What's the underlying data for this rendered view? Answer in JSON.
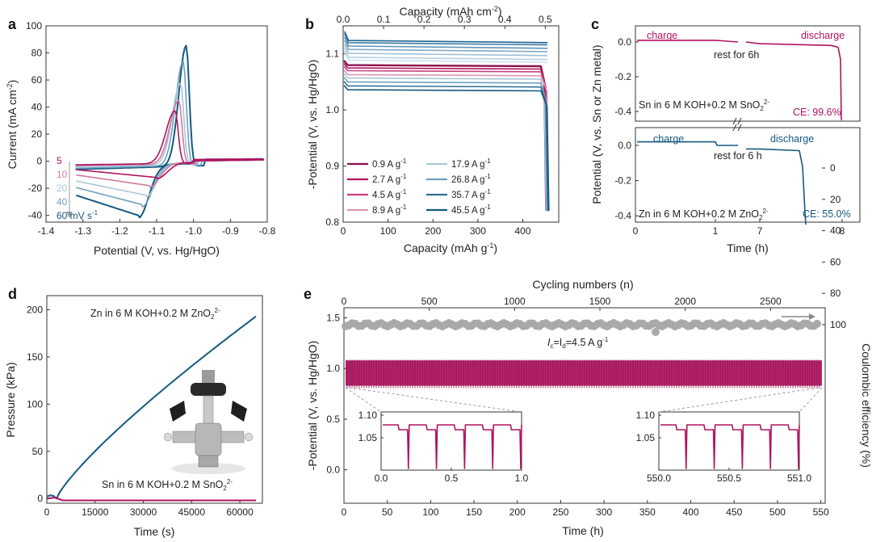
{
  "colors": {
    "magenta": "#b0135f",
    "navy": "#155a80",
    "grey": "#a9a9a9",
    "cv": [
      "#b0135f",
      "#d27aa0",
      "#a9c6d8",
      "#6f9fbd",
      "#155a80"
    ]
  },
  "chart_data": [
    {
      "panel": "a",
      "type": "line",
      "xlabel": "Potential (V, vs. Hg/HgO)",
      "ylabel": "Current (mA cm-2)",
      "ylabel_main": "Current (mA cm",
      "ylabel_sup": "-2",
      "ylabel_end": ")",
      "xlim": [
        -1.4,
        -0.8
      ],
      "ylim": [
        -45,
        100
      ],
      "xticks": [
        "-1.4",
        "-1.3",
        "-1.2",
        "-1.1",
        "-1.0",
        "-0.9",
        "-0.8"
      ],
      "yticks": [
        "100",
        "80",
        "60",
        "40",
        "20",
        "0",
        "-20",
        "-40"
      ],
      "series_labels": [
        "5",
        "10",
        "20",
        "40",
        "60 mV s"
      ],
      "series_unit_sup": "-1",
      "series": [
        {
          "name": "5 mV s-1",
          "peak_ox": [
            -1.05,
            39
          ],
          "peak_red": [
            -1.1,
            -12
          ]
        },
        {
          "name": "10 mV s-1",
          "peak_ox": [
            -1.04,
            47
          ],
          "peak_red": [
            -1.12,
            -18
          ]
        },
        {
          "name": "20 mV s-1",
          "peak_ox": [
            -1.035,
            60
          ],
          "peak_red": [
            -1.13,
            -25
          ]
        },
        {
          "name": "40 mV s-1",
          "peak_ox": [
            -1.028,
            77
          ],
          "peak_red": [
            -1.14,
            -32
          ]
        },
        {
          "name": "60 mV s-1",
          "peak_ox": [
            -1.02,
            89
          ],
          "peak_red": [
            -1.15,
            -40
          ]
        }
      ]
    },
    {
      "panel": "b",
      "type": "line",
      "xlabel": "Capacity (mAh g-1)",
      "xlabel_main": "Capacity (mAh g",
      "xlabel_sup": "-1",
      "xlabel_end": ")",
      "x2label": "Capacity (mAh cm-2)",
      "x2label_main": "Capacity (mAh cm",
      "x2label_sup": "-2",
      "x2label_end": ")",
      "ylabel": "-Potential (V, vs. Hg/HgO)",
      "xlim": [
        0,
        480
      ],
      "ylim": [
        0.8,
        1.15
      ],
      "xticks": [
        "0",
        "100",
        "200",
        "300",
        "400"
      ],
      "x2ticks": [
        "0.0",
        "0.1",
        "0.2",
        "0.3",
        "0.4",
        "0.5"
      ],
      "yticks": [
        "1.1",
        "1.0",
        "0.9",
        "0.8"
      ],
      "legend": [
        {
          "label": "0.9 A g",
          "sup": "-1",
          "plateau": 1.08
        },
        {
          "label": "2.7 A g",
          "sup": "-1",
          "plateau": 1.075
        },
        {
          "label": "4.5 A g",
          "sup": "-1",
          "plateau": 1.07
        },
        {
          "label": "8.9 A g",
          "sup": "-1",
          "plateau": 1.063
        },
        {
          "label": "17.9 A g",
          "sup": "-1",
          "plateau": 1.057
        },
        {
          "label": "26.8 A g",
          "sup": "-1",
          "plateau": 1.05
        },
        {
          "label": "35.7 A g",
          "sup": "-1",
          "plateau": 1.043
        },
        {
          "label": "45.5 A g",
          "sup": "-1",
          "plateau": 1.036
        }
      ],
      "upper_plateaus": [
        1.085,
        1.09,
        1.097,
        1.104,
        1.11,
        1.116,
        1.12
      ]
    },
    {
      "panel": "c",
      "type": "line",
      "xlabel": "Time (h)",
      "ylabel": "Potential (V, vs. Sn or Zn metal)",
      "xticks": [
        "0",
        "1",
        "7",
        "8"
      ],
      "yticks": [
        "0.0",
        "-0.2",
        "-0.4"
      ],
      "top": {
        "charge": "charge",
        "discharge": "discharge",
        "rest": "rest for 6h",
        "label_main": "Sn in 6 M KOH+0.2 M SnO",
        "label_sub": "2",
        "label_sup": "2-",
        "ce": "CE: 99.6%"
      },
      "bottom": {
        "charge": "charge",
        "discharge": "discharge",
        "rest": "rest for 6 h",
        "label_main": "Zn in 6 M KOH+0.2 M ZnO",
        "label_sub": "2",
        "label_sup": "2-",
        "ce": "CE: 55.0%"
      }
    },
    {
      "panel": "d",
      "type": "line",
      "xlabel": "Time (s)",
      "ylabel": "Pressure (kPa)",
      "xlim": [
        0,
        67000
      ],
      "ylim": [
        -5,
        215
      ],
      "xticks": [
        "0",
        "15000",
        "30000",
        "45000",
        "60000"
      ],
      "yticks": [
        "200",
        "150",
        "100",
        "50",
        "0"
      ],
      "zn_label_main": "Zn in 6 M KOH+0.2 M ZnO",
      "zn_label_sub": "2",
      "zn_label_sup": "2-",
      "sn_label_main": "Sn in 6 M KOH+0.2 M SnO",
      "sn_label_sub": "2",
      "sn_label_sup": "2-",
      "zn_end_value": 193,
      "sn_end_value": -2
    },
    {
      "panel": "e",
      "type": "line",
      "xlabel": "Time (h)",
      "x2label": "Cycling numbers (n)",
      "ylabel": "-Potential (V, vs. Hg/HgO)",
      "y2label": "Coulombic efficiency (%)",
      "xlim": [
        0,
        555
      ],
      "ylim": [
        -0.33,
        1.6
      ],
      "xticks": [
        "0",
        "50",
        "100",
        "150",
        "200",
        "250",
        "300",
        "350",
        "400",
        "450",
        "500",
        "550"
      ],
      "x2ticks": [
        "0",
        "500",
        "1000",
        "1500",
        "2000",
        "2500"
      ],
      "yticks": [
        "1.5",
        "1.0",
        "0.5",
        "0.0"
      ],
      "y2ticks": [
        "100",
        "80",
        "60",
        "40",
        "20",
        "0"
      ],
      "annotation_main": "I",
      "annotation_sub1": "c",
      "annotation_mid": "=I",
      "annotation_sub2": "d",
      "annotation_end": "=4.5 A g",
      "annotation_sup": "-1",
      "ce_value": 100,
      "inset_left": {
        "xticks": [
          "0.0",
          "0.5",
          "1.0"
        ],
        "yticks": [
          "1.10",
          "1.05"
        ]
      },
      "inset_right": {
        "xticks": [
          "550.0",
          "550.5",
          "551.0"
        ],
        "yticks": [
          "1.10",
          "1.05"
        ]
      }
    }
  ],
  "panel_labels": [
    "a",
    "b",
    "c",
    "d",
    "e"
  ]
}
